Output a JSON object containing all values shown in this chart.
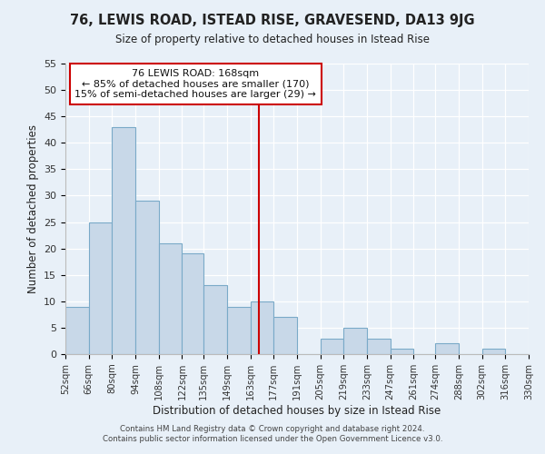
{
  "title": "76, LEWIS ROAD, ISTEAD RISE, GRAVESEND, DA13 9JG",
  "subtitle": "Size of property relative to detached houses in Istead Rise",
  "xlabel": "Distribution of detached houses by size in Istead Rise",
  "ylabel": "Number of detached properties",
  "bins": [
    52,
    66,
    80,
    94,
    108,
    122,
    135,
    149,
    163,
    177,
    191,
    205,
    219,
    233,
    247,
    261,
    274,
    288,
    302,
    316,
    330
  ],
  "counts": [
    9,
    25,
    43,
    29,
    21,
    19,
    13,
    9,
    10,
    7,
    0,
    3,
    5,
    3,
    1,
    0,
    2,
    0,
    1,
    0
  ],
  "bar_color": "#c8d8e8",
  "bar_edgecolor": "#7aaac8",
  "property_line_x": 168,
  "property_line_color": "#cc0000",
  "annotation_line1": "76 LEWIS ROAD: 168sqm",
  "annotation_line2": "← 85% of detached houses are smaller (170)",
  "annotation_line3": "15% of semi-detached houses are larger (29) →",
  "annotation_box_facecolor": "#ffffff",
  "annotation_box_edgecolor": "#cc0000",
  "ylim": [
    0,
    55
  ],
  "yticks": [
    0,
    5,
    10,
    15,
    20,
    25,
    30,
    35,
    40,
    45,
    50,
    55
  ],
  "tick_labels": [
    "52sqm",
    "66sqm",
    "80sqm",
    "94sqm",
    "108sqm",
    "122sqm",
    "135sqm",
    "149sqm",
    "163sqm",
    "177sqm",
    "191sqm",
    "205sqm",
    "219sqm",
    "233sqm",
    "247sqm",
    "261sqm",
    "274sqm",
    "288sqm",
    "302sqm",
    "316sqm",
    "330sqm"
  ],
  "bg_color": "#e8f0f8",
  "footer_line1": "Contains HM Land Registry data © Crown copyright and database right 2024.",
  "footer_line2": "Contains public sector information licensed under the Open Government Licence v3.0."
}
